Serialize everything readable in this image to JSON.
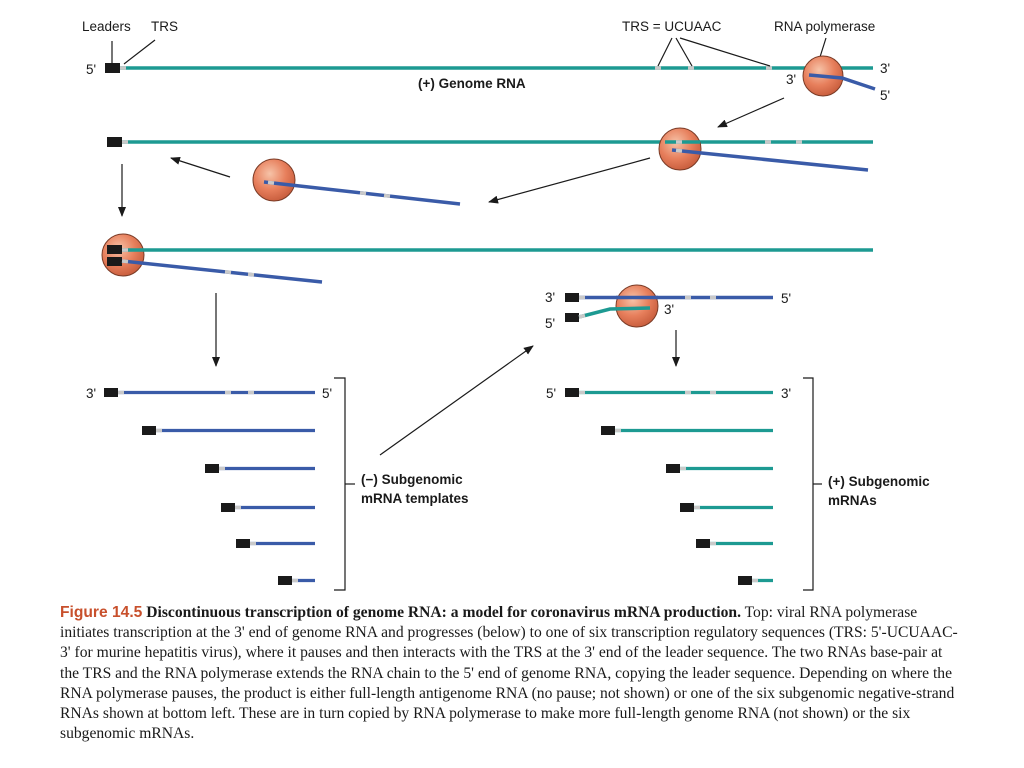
{
  "labels": {
    "leaders": "Leaders",
    "trs": "TRS",
    "trs_seq": "TRS = UCUAAC",
    "rna_polymerase": "RNA polymerase",
    "genome_rna": "(+) Genome RNA",
    "neg_sub_line1": "(−) Subgenomic",
    "neg_sub_line2": "mRNA templates",
    "pos_sub_line1": "(+) Subgenomic",
    "pos_sub_line2": "mRNAs",
    "five_prime": "5'",
    "three_prime": "3'"
  },
  "colors": {
    "genome_strand": "#1d9a92",
    "negative_strand": "#3a5ba8",
    "leader_block": "#1a1a1a",
    "polymerase": "#e77f5c",
    "trs_mark": "#c9c9c9",
    "caption_label": "#c8502c"
  },
  "caption": {
    "figure_label": "Figure 14.5",
    "title": "Discontinuous transcription of genome RNA: a model for coronavirus mRNA production.",
    "body": "Top: viral RNA polymerase initiates transcription at the 3' end of genome RNA and progresses (below) to one of six transcription regulatory sequences (TRS: 5'-UCUAAC-3' for murine hepatitis virus), where it pauses and then interacts with the TRS at the 3' end of the leader sequence. The two RNAs base-pair at the TRS and the RNA polymerase extends the RNA chain to the 5' end of genome RNA, copying the leader sequence. Depending on where the RNA polymerase pauses, the product is either full-length antigenome RNA (no pause; not shown) or one of the six subgenomic negative-strand RNAs shown at bottom left. These are in turn copied by RNA polymerase to make more full-length genome RNA (not shown) or the six subgenomic mRNAs."
  }
}
